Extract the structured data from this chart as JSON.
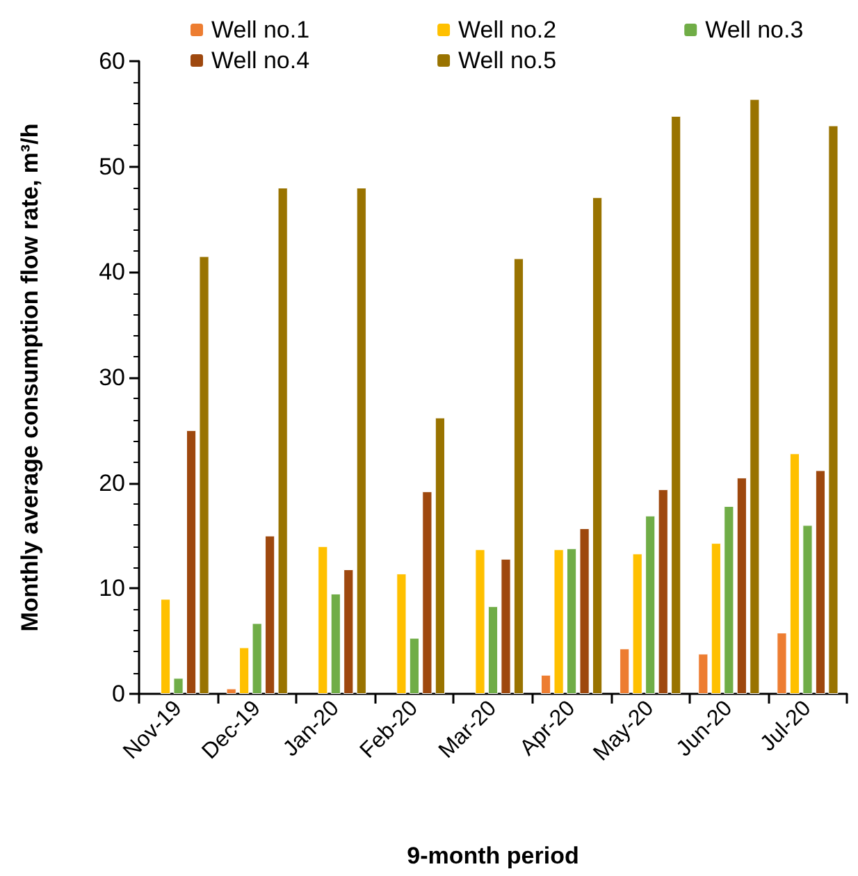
{
  "chart_data": {
    "type": "bar",
    "xlabel": "9-month period",
    "ylabel": "Monthly average consumption flow rate, m³/h",
    "categories": [
      "Nov-19",
      "Dec-19",
      "Jan-20",
      "Feb-20",
      "Mar-20",
      "Apr-20",
      "May-20",
      "Jun-20",
      "Jul-20"
    ],
    "series": [
      {
        "name": "Well no.1",
        "color": "#ed7d31",
        "values": [
          null,
          0.5,
          null,
          null,
          null,
          1.8,
          4.3,
          3.8,
          5.8
        ]
      },
      {
        "name": "Well no.2",
        "color": "#ffc000",
        "values": [
          9,
          4.4,
          14,
          11.4,
          13.7,
          13.7,
          13.3,
          14.3,
          22.8
        ]
      },
      {
        "name": "Well no.3",
        "color": "#70ad47",
        "values": [
          1.5,
          6.7,
          9.5,
          5.3,
          8.3,
          13.8,
          16.9,
          17.8,
          16
        ]
      },
      {
        "name": "Well no.4",
        "color": "#9e480e",
        "values": [
          25,
          15,
          11.8,
          19.2,
          12.8,
          15.7,
          19.4,
          20.5,
          21.2
        ]
      },
      {
        "name": "Well no.5",
        "color": "#997300",
        "values": [
          41.5,
          48,
          48,
          26.2,
          41.3,
          47.1,
          54.8,
          56.4,
          53.9
        ]
      }
    ],
    "ylim": [
      0,
      60
    ],
    "yticks": [
      0,
      10,
      20,
      30,
      40,
      50,
      60
    ],
    "grid": false,
    "legend": "top"
  }
}
